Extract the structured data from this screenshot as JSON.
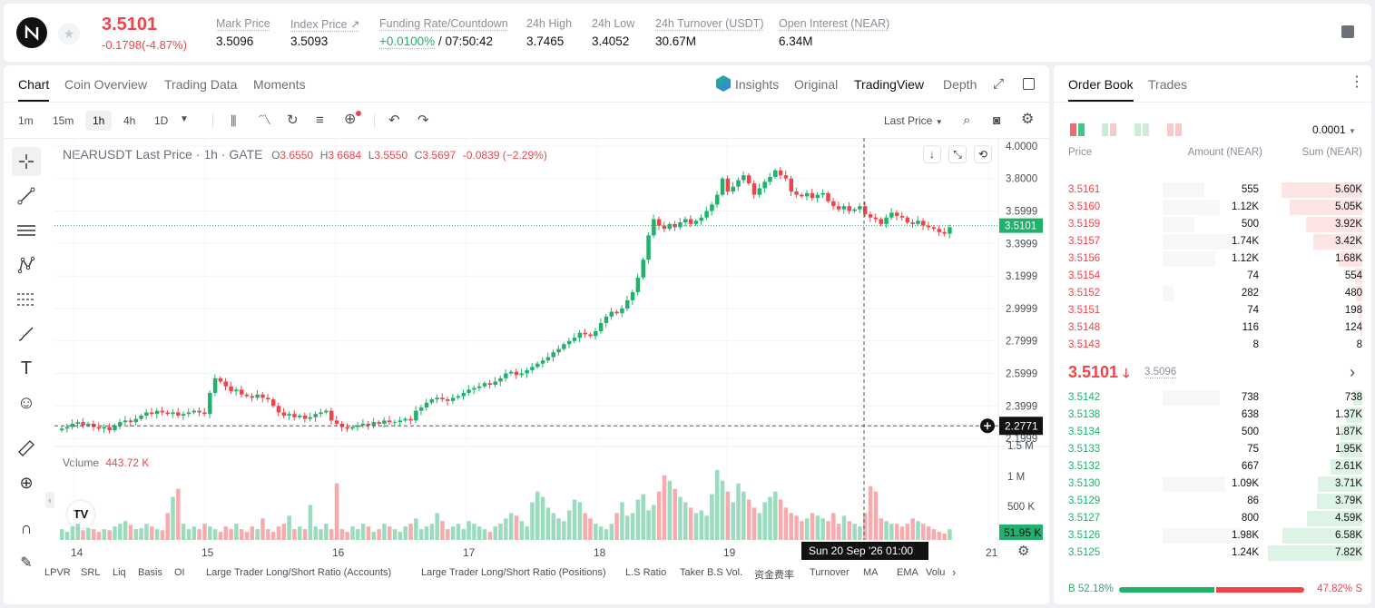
{
  "header": {
    "price": "3.5101",
    "change": "-0.1798(-4.87%)",
    "stats": [
      {
        "label": "Mark Price",
        "value": "3.5096"
      },
      {
        "label": "Index Price",
        "value": "3.5093"
      },
      {
        "label": "Funding Rate/Countdown",
        "value": "+0.0100%",
        "value2": "/ 07:50:42"
      },
      {
        "label": "24h High",
        "value": "3.7465"
      },
      {
        "label": "24h Low",
        "value": "3.4052"
      },
      {
        "label": "24h Turnover (USDT)",
        "value": "30.67M"
      },
      {
        "label": "Open Interest (NEAR)",
        "value": "6.34M"
      }
    ],
    "colors": {
      "up": "#20b26c",
      "down": "#ef454a"
    }
  },
  "chart_panel": {
    "tabs": [
      "Chart",
      "Coin Overview",
      "Trading Data",
      "Moments"
    ],
    "view_tabs": [
      "Insights",
      "Original",
      "TradingView",
      "Depth"
    ],
    "timeframes": [
      "1m",
      "15m",
      "1h",
      "4h",
      "1D"
    ],
    "active_timeframe": "1h",
    "price_source": "Last Price",
    "legend": {
      "symbol": "NEARUSDT Last Price · 1h · GATE",
      "o": "3.6550",
      "h": "3.6684",
      "l": "3.5550",
      "c": "3.5697",
      "chg": "-0.0839 (−2.29%)"
    },
    "volume_label": "Volume",
    "volume_value": "443.72 K",
    "bottom_indicators": [
      "LPVR",
      "SRL",
      "Liq",
      "Basis",
      "OI",
      "Large Trader Long/Short Ratio (Accounts)",
      "Large Trader Long/Short Ratio (Positions)",
      "L.S Ratio",
      "Taker B.S Vol.",
      "资金费率",
      "Turnover",
      "MA",
      "EMA",
      "Volu"
    ]
  },
  "chart_data": {
    "type": "candlestick",
    "title": "NEARUSDT Last Price · 1h · GATE",
    "x_ticks": [
      "14",
      "15",
      "16",
      "17",
      "18",
      "19",
      "21"
    ],
    "y_ticks": [
      "4.0000",
      "3.8000",
      "3.5999",
      "3.3999",
      "3.1999",
      "2.9999",
      "2.7999",
      "2.5999",
      "2.3999",
      "2.1999"
    ],
    "ylim": [
      2.15,
      4.05
    ],
    "volume_ticks": [
      "1.5 M",
      "1 M",
      "500 K"
    ],
    "last_price_label": "3.5101",
    "crosshair_price_label": "2.2771",
    "crosshair_time_label": "Sun 20 Sep '26   01:00",
    "volume_last_label": "51.95 K",
    "close_series": [
      2.26,
      2.27,
      2.29,
      2.3,
      2.28,
      2.29,
      2.27,
      2.26,
      2.27,
      2.25,
      2.28,
      2.3,
      2.31,
      2.3,
      2.32,
      2.34,
      2.36,
      2.35,
      2.37,
      2.36,
      2.35,
      2.36,
      2.34,
      2.35,
      2.36,
      2.37,
      2.36,
      2.35,
      2.48,
      2.57,
      2.55,
      2.52,
      2.49,
      2.5,
      2.47,
      2.46,
      2.45,
      2.47,
      2.45,
      2.44,
      2.4,
      2.36,
      2.34,
      2.35,
      2.33,
      2.34,
      2.32,
      2.33,
      2.35,
      2.36,
      2.37,
      2.31,
      2.29,
      2.27,
      2.26,
      2.27,
      2.28,
      2.29,
      2.28,
      2.3,
      2.29,
      2.31,
      2.3,
      2.3,
      2.31,
      2.32,
      2.31,
      2.37,
      2.39,
      2.42,
      2.44,
      2.45,
      2.44,
      2.43,
      2.45,
      2.46,
      2.48,
      2.5,
      2.51,
      2.52,
      2.54,
      2.53,
      2.55,
      2.57,
      2.6,
      2.61,
      2.59,
      2.6,
      2.62,
      2.64,
      2.66,
      2.68,
      2.7,
      2.73,
      2.75,
      2.78,
      2.8,
      2.82,
      2.85,
      2.84,
      2.83,
      2.86,
      2.91,
      2.95,
      2.98,
      2.97,
      3,
      3.05,
      3.1,
      3.19,
      3.3,
      3.45,
      3.55,
      3.51,
      3.49,
      3.52,
      3.5,
      3.53,
      3.55,
      3.52,
      3.54,
      3.56,
      3.6,
      3.64,
      3.7,
      3.8,
      3.72,
      3.75,
      3.79,
      3.82,
      3.77,
      3.7,
      3.74,
      3.78,
      3.81,
      3.85,
      3.82,
      3.8,
      3.72,
      3.7,
      3.69,
      3.71,
      3.68,
      3.7,
      3.71,
      3.66,
      3.63,
      3.61,
      3.63,
      3.6,
      3.61,
      3.63,
      3.58,
      3.56,
      3.55,
      3.52,
      3.56,
      3.59,
      3.57,
      3.56,
      3.53,
      3.52,
      3.54,
      3.51,
      3.5,
      3.49,
      3.47,
      3.46,
      3.5
    ],
    "volume_series": [
      0.2,
      0.15,
      0.25,
      0.3,
      0.18,
      0.22,
      0.2,
      0.15,
      0.2,
      0.18,
      0.25,
      0.3,
      0.35,
      0.28,
      0.2,
      0.22,
      0.3,
      0.25,
      0.2,
      0.18,
      0.5,
      0.8,
      0.95,
      0.3,
      0.2,
      0.25,
      0.2,
      0.3,
      0.25,
      0.2,
      0.15,
      0.25,
      0.2,
      0.3,
      0.2,
      0.15,
      0.25,
      0.2,
      0.4,
      0.2,
      0.15,
      0.25,
      0.3,
      0.45,
      0.2,
      0.25,
      0.2,
      0.65,
      0.25,
      0.2,
      0.3,
      0.2,
      1.05,
      0.2,
      0.15,
      0.25,
      0.2,
      0.3,
      0.25,
      0.15,
      0.2,
      0.3,
      0.25,
      0.2,
      0.15,
      0.25,
      0.3,
      0.4,
      0.2,
      0.25,
      0.3,
      0.5,
      0.35,
      0.2,
      0.25,
      0.3,
      0.2,
      0.35,
      0.3,
      0.25,
      0.2,
      0.15,
      0.25,
      0.3,
      0.4,
      0.5,
      0.45,
      0.35,
      0.25,
      0.7,
      0.9,
      0.8,
      0.6,
      0.5,
      0.4,
      0.35,
      0.55,
      0.75,
      0.7,
      0.5,
      0.4,
      0.3,
      0.25,
      0.2,
      0.3,
      0.5,
      0.7,
      0.45,
      0.5,
      0.75,
      0.85,
      0.55,
      0.65,
      0.9,
      1.2,
      1.1,
      0.95,
      0.8,
      0.7,
      0.6,
      0.5,
      0.55,
      0.45,
      0.85,
      1.3,
      1.1,
      0.9,
      0.7,
      1.05,
      0.9,
      0.75,
      0.6,
      0.5,
      0.7,
      0.8,
      0.9,
      0.75,
      0.6,
      0.5,
      0.45,
      0.35,
      0.4,
      0.5,
      0.45,
      0.4,
      0.35,
      0.5,
      0.3,
      0.45,
      0.35,
      0.3,
      0.25,
      0.5,
      1.0,
      0.9,
      0.4,
      0.35,
      0.3,
      0.3,
      0.25,
      0.3,
      0.4,
      0.35,
      0.3,
      0.25,
      0.2,
      0.15,
      0.12
    ]
  },
  "order_book": {
    "tabs": [
      "Order Book",
      "Trades"
    ],
    "precision": "0.0001",
    "headers": [
      "Price",
      "Amount (NEAR)",
      "Sum (NEAR)"
    ],
    "asks": [
      {
        "price": "3.5161",
        "amount": "555",
        "sum": "5.60K",
        "depth": 0.74,
        "adepth": 0.4
      },
      {
        "price": "3.5160",
        "amount": "1.12K",
        "sum": "5.05K",
        "depth": 0.67,
        "adepth": 0.55
      },
      {
        "price": "3.5159",
        "amount": "500",
        "sum": "3.92K",
        "depth": 0.52,
        "adepth": 0.3
      },
      {
        "price": "3.5157",
        "amount": "1.74K",
        "sum": "3.42K",
        "depth": 0.45,
        "adepth": 0.7
      },
      {
        "price": "3.5156",
        "amount": "1.12K",
        "sum": "1.68K",
        "depth": 0.22,
        "adepth": 0.5
      },
      {
        "price": "3.5154",
        "amount": "74",
        "sum": "554",
        "depth": 0.07,
        "adepth": 0.0
      },
      {
        "price": "3.5152",
        "amount": "282",
        "sum": "480",
        "depth": 0.06,
        "adepth": 0.1
      },
      {
        "price": "3.5151",
        "amount": "74",
        "sum": "198",
        "depth": 0.03,
        "adepth": 0.0
      },
      {
        "price": "3.5148",
        "amount": "116",
        "sum": "124",
        "depth": 0.02,
        "adepth": 0.0
      },
      {
        "price": "3.5143",
        "amount": "8",
        "sum": "8",
        "depth": 0.0,
        "adepth": 0.0
      }
    ],
    "mid_price": "3.5101",
    "mid_mark": "3.5096",
    "bids": [
      {
        "price": "3.5142",
        "amount": "738",
        "sum": "738",
        "depth": 0.08,
        "adepth": 0.55
      },
      {
        "price": "3.5138",
        "amount": "638",
        "sum": "1.37K",
        "depth": 0.15,
        "adepth": 0.0
      },
      {
        "price": "3.5134",
        "amount": "500",
        "sum": "1.87K",
        "depth": 0.2,
        "adepth": 0.0
      },
      {
        "price": "3.5133",
        "amount": "75",
        "sum": "1.95K",
        "depth": 0.21,
        "adepth": 0.0
      },
      {
        "price": "3.5132",
        "amount": "667",
        "sum": "2.61K",
        "depth": 0.29,
        "adepth": 0.0
      },
      {
        "price": "3.5130",
        "amount": "1.09K",
        "sum": "3.71K",
        "depth": 0.41,
        "adepth": 0.6
      },
      {
        "price": "3.5129",
        "amount": "86",
        "sum": "3.79K",
        "depth": 0.42,
        "adepth": 0.0
      },
      {
        "price": "3.5127",
        "amount": "800",
        "sum": "4.59K",
        "depth": 0.51,
        "adepth": 0.0
      },
      {
        "price": "3.5126",
        "amount": "1.98K",
        "sum": "6.58K",
        "depth": 0.73,
        "adepth": 0.75
      },
      {
        "price": "3.5125",
        "amount": "1.24K",
        "sum": "7.82K",
        "depth": 0.87,
        "adepth": 0.0
      }
    ],
    "buy_ratio": "B 52.18%",
    "sell_ratio": "47.82% S",
    "buy_fraction": 0.5218
  }
}
